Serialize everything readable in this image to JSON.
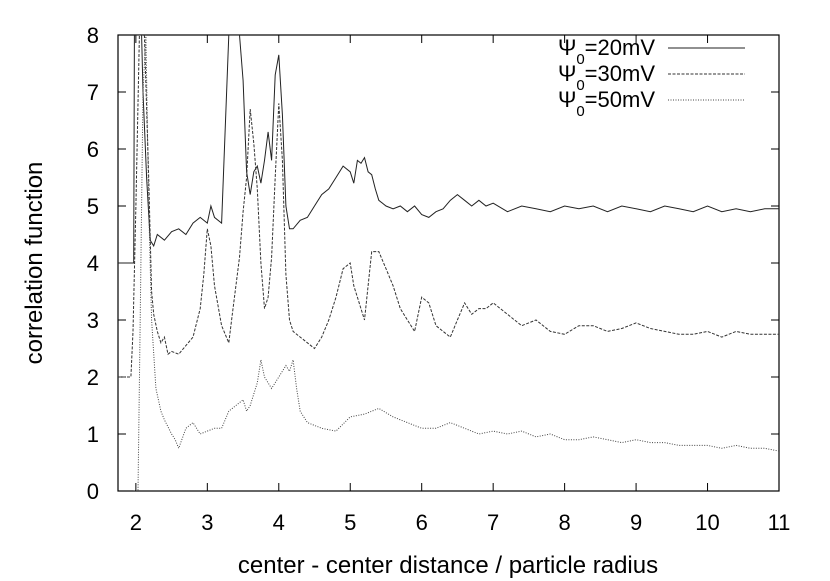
{
  "chart_data": {
    "type": "line",
    "xlabel": "center - center distance / particle radius",
    "ylabel": "correlation function",
    "xlim": [
      1.75,
      11
    ],
    "ylim": [
      0,
      8
    ],
    "xticks": [
      2,
      3,
      4,
      5,
      6,
      7,
      8,
      9,
      10,
      11
    ],
    "yticks": [
      0,
      1,
      2,
      3,
      4,
      5,
      6,
      7,
      8
    ],
    "grid": false,
    "legend_position": "top-right",
    "series": [
      {
        "name": "Ψ0=20mV",
        "legend_base": "Ψ",
        "legend_sub": "0",
        "legend_rest": "=20mV",
        "style": "solid",
        "color": "#222222",
        "points": [
          [
            1.75,
            4.0
          ],
          [
            1.97,
            4.0
          ],
          [
            1.98,
            8.0
          ],
          [
            2.08,
            8.0
          ],
          [
            2.1,
            7.0
          ],
          [
            2.15,
            5.5
          ],
          [
            2.2,
            4.4
          ],
          [
            2.25,
            4.3
          ],
          [
            2.3,
            4.5
          ],
          [
            2.4,
            4.4
          ],
          [
            2.5,
            4.55
          ],
          [
            2.6,
            4.6
          ],
          [
            2.7,
            4.5
          ],
          [
            2.8,
            4.7
          ],
          [
            2.9,
            4.8
          ],
          [
            3.0,
            4.7
          ],
          [
            3.05,
            5.0
          ],
          [
            3.1,
            4.8
          ],
          [
            3.2,
            4.7
          ],
          [
            3.3,
            8.0
          ],
          [
            3.45,
            8.0
          ],
          [
            3.5,
            7.2
          ],
          [
            3.55,
            5.6
          ],
          [
            3.6,
            5.2
          ],
          [
            3.65,
            5.6
          ],
          [
            3.7,
            5.7
          ],
          [
            3.75,
            5.4
          ],
          [
            3.8,
            5.8
          ],
          [
            3.85,
            6.3
          ],
          [
            3.9,
            5.8
          ],
          [
            3.95,
            7.3
          ],
          [
            4.0,
            7.65
          ],
          [
            4.05,
            6.6
          ],
          [
            4.1,
            5.0
          ],
          [
            4.15,
            4.6
          ],
          [
            4.2,
            4.6
          ],
          [
            4.3,
            4.75
          ],
          [
            4.4,
            4.8
          ],
          [
            4.5,
            5.0
          ],
          [
            4.6,
            5.2
          ],
          [
            4.7,
            5.3
          ],
          [
            4.8,
            5.5
          ],
          [
            4.9,
            5.7
          ],
          [
            5.0,
            5.6
          ],
          [
            5.05,
            5.4
          ],
          [
            5.1,
            5.8
          ],
          [
            5.15,
            5.75
          ],
          [
            5.2,
            5.85
          ],
          [
            5.25,
            5.6
          ],
          [
            5.3,
            5.55
          ],
          [
            5.35,
            5.3
          ],
          [
            5.4,
            5.1
          ],
          [
            5.5,
            5.0
          ],
          [
            5.6,
            4.95
          ],
          [
            5.7,
            5.0
          ],
          [
            5.8,
            4.9
          ],
          [
            5.9,
            5.0
          ],
          [
            6.0,
            4.85
          ],
          [
            6.1,
            4.8
          ],
          [
            6.2,
            4.9
          ],
          [
            6.3,
            4.95
          ],
          [
            6.4,
            5.1
          ],
          [
            6.5,
            5.2
          ],
          [
            6.6,
            5.1
          ],
          [
            6.7,
            5.0
          ],
          [
            6.8,
            5.1
          ],
          [
            6.9,
            5.0
          ],
          [
            7.0,
            5.05
          ],
          [
            7.2,
            4.9
          ],
          [
            7.4,
            5.0
          ],
          [
            7.6,
            4.95
          ],
          [
            7.8,
            4.9
          ],
          [
            8.0,
            5.0
          ],
          [
            8.2,
            4.95
          ],
          [
            8.4,
            5.0
          ],
          [
            8.6,
            4.9
          ],
          [
            8.8,
            5.0
          ],
          [
            9.0,
            4.95
          ],
          [
            9.2,
            4.9
          ],
          [
            9.4,
            5.0
          ],
          [
            9.6,
            4.95
          ],
          [
            9.8,
            4.9
          ],
          [
            10.0,
            5.0
          ],
          [
            10.2,
            4.9
          ],
          [
            10.4,
            4.95
          ],
          [
            10.6,
            4.9
          ],
          [
            10.8,
            4.95
          ],
          [
            11.0,
            4.95
          ]
        ]
      },
      {
        "name": "Ψ0=30mV",
        "legend_base": "Ψ",
        "legend_sub": "0",
        "legend_rest": "=30mV",
        "style": "dashed",
        "color": "#333333",
        "points": [
          [
            1.75,
            2.0
          ],
          [
            1.93,
            2.0
          ],
          [
            1.96,
            2.8
          ],
          [
            2.0,
            5.0
          ],
          [
            2.05,
            8.0
          ],
          [
            2.12,
            8.0
          ],
          [
            2.18,
            5.5
          ],
          [
            2.22,
            3.5
          ],
          [
            2.25,
            3.1
          ],
          [
            2.3,
            2.8
          ],
          [
            2.35,
            2.6
          ],
          [
            2.4,
            2.7
          ],
          [
            2.45,
            2.4
          ],
          [
            2.5,
            2.45
          ],
          [
            2.6,
            2.4
          ],
          [
            2.7,
            2.55
          ],
          [
            2.8,
            2.7
          ],
          [
            2.9,
            3.2
          ],
          [
            2.95,
            3.8
          ],
          [
            3.0,
            4.6
          ],
          [
            3.05,
            4.3
          ],
          [
            3.1,
            3.6
          ],
          [
            3.2,
            2.9
          ],
          [
            3.3,
            2.6
          ],
          [
            3.35,
            3.1
          ],
          [
            3.4,
            3.6
          ],
          [
            3.45,
            4.1
          ],
          [
            3.5,
            4.9
          ],
          [
            3.55,
            5.5
          ],
          [
            3.6,
            6.7
          ],
          [
            3.65,
            6.1
          ],
          [
            3.7,
            5.3
          ],
          [
            3.75,
            4.0
          ],
          [
            3.8,
            3.2
          ],
          [
            3.85,
            3.4
          ],
          [
            3.9,
            4.1
          ],
          [
            3.95,
            5.5
          ],
          [
            4.0,
            6.8
          ],
          [
            4.05,
            5.8
          ],
          [
            4.1,
            3.8
          ],
          [
            4.15,
            3.0
          ],
          [
            4.2,
            2.8
          ],
          [
            4.3,
            2.7
          ],
          [
            4.4,
            2.6
          ],
          [
            4.5,
            2.5
          ],
          [
            4.6,
            2.7
          ],
          [
            4.7,
            3.0
          ],
          [
            4.8,
            3.4
          ],
          [
            4.9,
            3.9
          ],
          [
            5.0,
            4.0
          ],
          [
            5.05,
            3.6
          ],
          [
            5.1,
            3.4
          ],
          [
            5.2,
            3.0
          ],
          [
            5.3,
            4.2
          ],
          [
            5.4,
            4.2
          ],
          [
            5.5,
            3.9
          ],
          [
            5.6,
            3.6
          ],
          [
            5.7,
            3.2
          ],
          [
            5.8,
            3.0
          ],
          [
            5.9,
            2.8
          ],
          [
            6.0,
            3.4
          ],
          [
            6.1,
            3.3
          ],
          [
            6.2,
            2.9
          ],
          [
            6.3,
            2.8
          ],
          [
            6.4,
            2.7
          ],
          [
            6.5,
            3.0
          ],
          [
            6.6,
            3.3
          ],
          [
            6.7,
            3.1
          ],
          [
            6.8,
            3.2
          ],
          [
            6.9,
            3.2
          ],
          [
            7.0,
            3.3
          ],
          [
            7.2,
            3.1
          ],
          [
            7.4,
            2.9
          ],
          [
            7.6,
            3.0
          ],
          [
            7.8,
            2.8
          ],
          [
            8.0,
            2.75
          ],
          [
            8.2,
            2.9
          ],
          [
            8.4,
            2.9
          ],
          [
            8.6,
            2.8
          ],
          [
            8.8,
            2.85
          ],
          [
            9.0,
            2.95
          ],
          [
            9.2,
            2.85
          ],
          [
            9.4,
            2.8
          ],
          [
            9.6,
            2.75
          ],
          [
            9.8,
            2.75
          ],
          [
            10.0,
            2.8
          ],
          [
            10.2,
            2.7
          ],
          [
            10.4,
            2.8
          ],
          [
            10.6,
            2.75
          ],
          [
            10.8,
            2.75
          ],
          [
            11.0,
            2.75
          ]
        ]
      },
      {
        "name": "Ψ0=50mV",
        "legend_base": "Ψ",
        "legend_sub": "0",
        "legend_rest": "=50mV",
        "style": "dotted",
        "color": "#444444",
        "points": [
          [
            1.97,
            0.0
          ],
          [
            2.03,
            0.0
          ],
          [
            2.06,
            3.0
          ],
          [
            2.1,
            7.0
          ],
          [
            2.14,
            8.0
          ],
          [
            2.18,
            5.0
          ],
          [
            2.22,
            3.0
          ],
          [
            2.28,
            1.8
          ],
          [
            2.35,
            1.4
          ],
          [
            2.4,
            1.25
          ],
          [
            2.5,
            1.0
          ],
          [
            2.55,
            0.9
          ],
          [
            2.6,
            0.75
          ],
          [
            2.7,
            1.1
          ],
          [
            2.8,
            1.2
          ],
          [
            2.9,
            1.0
          ],
          [
            3.0,
            1.05
          ],
          [
            3.1,
            1.1
          ],
          [
            3.2,
            1.1
          ],
          [
            3.3,
            1.4
          ],
          [
            3.4,
            1.5
          ],
          [
            3.5,
            1.6
          ],
          [
            3.55,
            1.4
          ],
          [
            3.6,
            1.5
          ],
          [
            3.7,
            1.9
          ],
          [
            3.75,
            2.3
          ],
          [
            3.8,
            2.0
          ],
          [
            3.9,
            1.8
          ],
          [
            4.0,
            2.0
          ],
          [
            4.1,
            2.2
          ],
          [
            4.15,
            2.1
          ],
          [
            4.2,
            2.3
          ],
          [
            4.25,
            1.8
          ],
          [
            4.3,
            1.4
          ],
          [
            4.4,
            1.2
          ],
          [
            4.5,
            1.15
          ],
          [
            4.6,
            1.1
          ],
          [
            4.8,
            1.05
          ],
          [
            5.0,
            1.3
          ],
          [
            5.2,
            1.35
          ],
          [
            5.4,
            1.45
          ],
          [
            5.6,
            1.3
          ],
          [
            5.8,
            1.2
          ],
          [
            6.0,
            1.1
          ],
          [
            6.2,
            1.1
          ],
          [
            6.4,
            1.2
          ],
          [
            6.6,
            1.1
          ],
          [
            6.8,
            1.0
          ],
          [
            7.0,
            1.05
          ],
          [
            7.2,
            1.0
          ],
          [
            7.4,
            1.05
          ],
          [
            7.6,
            0.95
          ],
          [
            7.8,
            1.0
          ],
          [
            8.0,
            0.9
          ],
          [
            8.2,
            0.9
          ],
          [
            8.4,
            0.95
          ],
          [
            8.6,
            0.9
          ],
          [
            8.8,
            0.85
          ],
          [
            9.0,
            0.9
          ],
          [
            9.2,
            0.85
          ],
          [
            9.4,
            0.85
          ],
          [
            9.6,
            0.8
          ],
          [
            9.8,
            0.8
          ],
          [
            10.0,
            0.8
          ],
          [
            10.2,
            0.75
          ],
          [
            10.4,
            0.8
          ],
          [
            10.6,
            0.75
          ],
          [
            10.8,
            0.75
          ],
          [
            11.0,
            0.7
          ]
        ]
      }
    ]
  }
}
